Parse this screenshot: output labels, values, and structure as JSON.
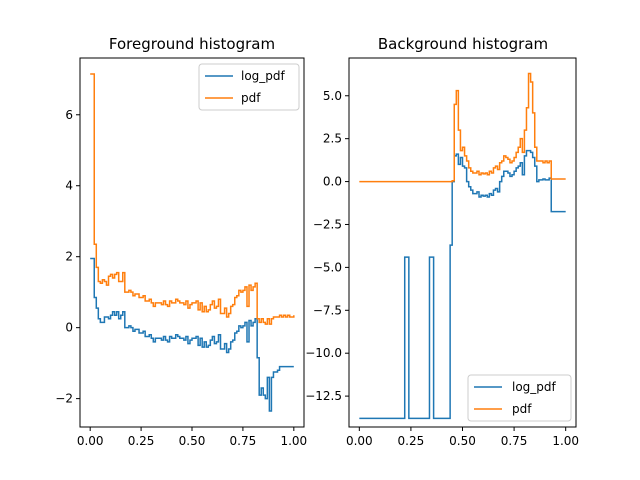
{
  "figure": {
    "background": "#ffffff"
  },
  "chart_data": [
    {
      "type": "line",
      "title": "Foreground histogram",
      "xlabel": "",
      "ylabel": "",
      "xlim": [
        -0.05,
        1.05
      ],
      "ylim": [
        -2.8,
        7.6
      ],
      "xticks": [
        0.0,
        0.25,
        0.5,
        0.75,
        1.0
      ],
      "xtick_labels": [
        "0.00",
        "0.25",
        "0.50",
        "0.75",
        "1.00"
      ],
      "yticks": [
        -2,
        0,
        2,
        4,
        6
      ],
      "ytick_labels": [
        "−2",
        "0",
        "2",
        "4",
        "6"
      ],
      "grid": false,
      "legend": "top-right",
      "series": [
        {
          "name": "log_pdf",
          "color": "#1f77b4",
          "step": true,
          "x": [
            0.0,
            0.02,
            0.03,
            0.04,
            0.05,
            0.06,
            0.07,
            0.08,
            0.09,
            0.1,
            0.11,
            0.12,
            0.13,
            0.14,
            0.15,
            0.16,
            0.17,
            0.18,
            0.19,
            0.2,
            0.21,
            0.22,
            0.23,
            0.24,
            0.25,
            0.26,
            0.27,
            0.28,
            0.29,
            0.3,
            0.31,
            0.32,
            0.33,
            0.34,
            0.35,
            0.36,
            0.37,
            0.38,
            0.39,
            0.4,
            0.41,
            0.42,
            0.43,
            0.44,
            0.45,
            0.46,
            0.47,
            0.48,
            0.49,
            0.5,
            0.51,
            0.52,
            0.53,
            0.54,
            0.55,
            0.56,
            0.57,
            0.58,
            0.59,
            0.6,
            0.61,
            0.62,
            0.63,
            0.64,
            0.65,
            0.66,
            0.67,
            0.68,
            0.69,
            0.7,
            0.71,
            0.72,
            0.73,
            0.74,
            0.75,
            0.76,
            0.77,
            0.78,
            0.79,
            0.8,
            0.81,
            0.82,
            0.83,
            0.84,
            0.85,
            0.86,
            0.87,
            0.88,
            0.89,
            0.9,
            0.91,
            0.92,
            0.93,
            0.94,
            0.95,
            0.96,
            0.97,
            0.98,
            0.99,
            1.0
          ],
          "y": [
            1.95,
            0.85,
            0.55,
            0.25,
            0.15,
            0.15,
            0.3,
            0.3,
            0.25,
            0.35,
            0.45,
            0.35,
            0.45,
            0.25,
            0.35,
            0.45,
            0.0,
            0.0,
            0.05,
            0.0,
            -0.1,
            -0.05,
            -0.05,
            -0.15,
            -0.15,
            -0.1,
            -0.25,
            -0.25,
            -0.2,
            -0.3,
            -0.4,
            -0.3,
            -0.3,
            -0.3,
            -0.35,
            -0.25,
            -0.35,
            -0.4,
            -0.25,
            -0.3,
            -0.3,
            -0.2,
            -0.25,
            -0.3,
            -0.3,
            -0.35,
            -0.25,
            -0.45,
            -0.35,
            -0.3,
            -0.3,
            -0.25,
            -0.5,
            -0.3,
            -0.55,
            -0.4,
            -0.55,
            -0.5,
            -0.35,
            -0.25,
            -0.45,
            -0.4,
            -0.2,
            -0.6,
            -0.6,
            -0.45,
            -0.7,
            -0.6,
            -0.4,
            -0.35,
            -0.15,
            -0.1,
            0.05,
            0.0,
            0.05,
            0.15,
            -0.4,
            0.2,
            0.05,
            0.15,
            0.25,
            -0.85,
            -1.9,
            -1.7,
            -1.9,
            -2.0,
            -1.4,
            -2.35,
            -1.4,
            -1.25,
            -1.25,
            -1.2,
            -1.1,
            -1.1,
            -1.1,
            -1.1,
            -1.1,
            -1.1,
            -1.1,
            -1.1
          ]
        },
        {
          "name": "pdf",
          "color": "#ff7f0e",
          "step": true,
          "x": [
            0.0,
            0.02,
            0.03,
            0.04,
            0.05,
            0.06,
            0.07,
            0.08,
            0.09,
            0.1,
            0.11,
            0.12,
            0.13,
            0.14,
            0.15,
            0.16,
            0.17,
            0.18,
            0.19,
            0.2,
            0.21,
            0.22,
            0.23,
            0.24,
            0.25,
            0.26,
            0.27,
            0.28,
            0.29,
            0.3,
            0.31,
            0.32,
            0.33,
            0.34,
            0.35,
            0.36,
            0.37,
            0.38,
            0.39,
            0.4,
            0.41,
            0.42,
            0.43,
            0.44,
            0.45,
            0.46,
            0.47,
            0.48,
            0.49,
            0.5,
            0.51,
            0.52,
            0.53,
            0.54,
            0.55,
            0.56,
            0.57,
            0.58,
            0.59,
            0.6,
            0.61,
            0.62,
            0.63,
            0.64,
            0.65,
            0.66,
            0.67,
            0.68,
            0.69,
            0.7,
            0.71,
            0.72,
            0.73,
            0.74,
            0.75,
            0.76,
            0.77,
            0.78,
            0.79,
            0.8,
            0.81,
            0.82,
            0.83,
            0.84,
            0.85,
            0.86,
            0.87,
            0.88,
            0.89,
            0.9,
            0.91,
            0.92,
            0.93,
            0.94,
            0.95,
            0.96,
            0.97,
            0.98,
            0.99,
            1.0
          ],
          "y": [
            7.15,
            2.35,
            1.7,
            1.3,
            1.25,
            1.35,
            1.3,
            1.2,
            1.45,
            1.5,
            1.4,
            1.5,
            1.55,
            1.3,
            1.3,
            1.55,
            1.0,
            1.0,
            1.05,
            1.0,
            0.9,
            0.95,
            0.95,
            0.85,
            0.85,
            0.9,
            0.75,
            0.75,
            0.8,
            0.7,
            0.6,
            0.7,
            0.7,
            0.7,
            0.65,
            0.75,
            0.65,
            0.6,
            0.75,
            0.7,
            0.7,
            0.8,
            0.75,
            0.7,
            0.7,
            0.65,
            0.75,
            0.55,
            0.65,
            0.7,
            0.7,
            0.75,
            0.5,
            0.7,
            0.45,
            0.6,
            0.45,
            0.5,
            0.65,
            0.75,
            0.55,
            0.6,
            0.8,
            0.4,
            0.4,
            0.55,
            0.3,
            0.4,
            0.6,
            0.65,
            0.85,
            0.9,
            1.05,
            1.0,
            1.05,
            1.15,
            0.6,
            1.2,
            1.05,
            1.15,
            1.25,
            0.25,
            0.15,
            0.25,
            0.15,
            0.1,
            0.25,
            0.1,
            0.25,
            0.3,
            0.3,
            0.3,
            0.35,
            0.3,
            0.35,
            0.3,
            0.35,
            0.3,
            0.3,
            0.35
          ]
        }
      ]
    },
    {
      "type": "line",
      "title": "Background histogram",
      "xlabel": "",
      "ylabel": "",
      "xlim": [
        -0.05,
        1.05
      ],
      "ylim": [
        -14.3,
        7.2
      ],
      "xticks": [
        0.0,
        0.25,
        0.5,
        0.75,
        1.0
      ],
      "xtick_labels": [
        "0.00",
        "0.25",
        "0.50",
        "0.75",
        "1.00"
      ],
      "yticks": [
        -12.5,
        -10.0,
        -7.5,
        -5.0,
        -2.5,
        0.0,
        2.5,
        5.0
      ],
      "ytick_labels": [
        "−12.5",
        "−10.0",
        "−7.5",
        "−5.0",
        "−2.5",
        "0.0",
        "2.5",
        "5.0"
      ],
      "grid": false,
      "legend": "bottom-right",
      "series": [
        {
          "name": "log_pdf",
          "color": "#1f77b4",
          "step": true,
          "x": [
            0.0,
            0.22,
            0.23,
            0.24,
            0.34,
            0.35,
            0.36,
            0.44,
            0.45,
            0.46,
            0.47,
            0.48,
            0.49,
            0.5,
            0.51,
            0.52,
            0.53,
            0.54,
            0.55,
            0.56,
            0.57,
            0.58,
            0.59,
            0.6,
            0.61,
            0.62,
            0.63,
            0.64,
            0.65,
            0.66,
            0.67,
            0.68,
            0.69,
            0.7,
            0.71,
            0.72,
            0.73,
            0.74,
            0.75,
            0.76,
            0.77,
            0.78,
            0.79,
            0.8,
            0.81,
            0.82,
            0.83,
            0.84,
            0.85,
            0.86,
            0.87,
            0.88,
            0.89,
            0.9,
            0.91,
            0.92,
            0.93,
            0.94,
            0.95,
            0.96,
            0.97,
            0.98,
            0.99,
            1.0
          ],
          "y": [
            -13.8,
            -4.4,
            -4.4,
            -13.8,
            -4.4,
            -4.4,
            -13.8,
            -3.7,
            0.0,
            1.5,
            1.6,
            1.0,
            1.4,
            0.9,
            0.8,
            0.0,
            -0.3,
            -0.5,
            -0.7,
            -0.7,
            -0.6,
            -0.9,
            -0.8,
            -0.85,
            -0.8,
            -0.9,
            -0.7,
            -0.8,
            -0.5,
            -0.4,
            -0.6,
            0.0,
            0.3,
            0.6,
            0.6,
            0.5,
            0.3,
            0.4,
            0.6,
            0.8,
            0.9,
            1.1,
            0.4,
            1.5,
            1.8,
            1.8,
            1.7,
            1.4,
            0.9,
            0.0,
            0.1,
            0.1,
            0.15,
            0.1,
            0.1,
            0.2,
            -1.75,
            -1.75,
            -1.75,
            -1.75,
            -1.75,
            -1.75,
            -1.75,
            -1.75
          ]
        },
        {
          "name": "pdf",
          "color": "#ff7f0e",
          "step": true,
          "x": [
            0.0,
            0.22,
            0.23,
            0.24,
            0.34,
            0.35,
            0.36,
            0.44,
            0.45,
            0.46,
            0.47,
            0.48,
            0.49,
            0.5,
            0.51,
            0.52,
            0.53,
            0.54,
            0.55,
            0.56,
            0.57,
            0.58,
            0.59,
            0.6,
            0.61,
            0.62,
            0.63,
            0.64,
            0.65,
            0.66,
            0.67,
            0.68,
            0.69,
            0.7,
            0.71,
            0.72,
            0.73,
            0.74,
            0.75,
            0.76,
            0.77,
            0.78,
            0.79,
            0.8,
            0.81,
            0.82,
            0.83,
            0.84,
            0.85,
            0.86,
            0.87,
            0.88,
            0.89,
            0.9,
            0.91,
            0.92,
            0.93,
            0.94,
            0.95,
            0.96,
            0.97,
            0.98,
            0.99,
            1.0
          ],
          "y": [
            0.0,
            0.0,
            0.0,
            0.0,
            0.0,
            0.0,
            0.0,
            0.0,
            0.05,
            4.5,
            5.3,
            3.0,
            1.8,
            2.0,
            1.5,
            1.2,
            0.8,
            0.6,
            0.5,
            0.5,
            0.6,
            0.4,
            0.5,
            0.45,
            0.5,
            0.4,
            0.6,
            0.5,
            0.8,
            0.9,
            0.7,
            1.1,
            1.2,
            1.5,
            1.4,
            1.3,
            1.1,
            1.2,
            1.4,
            1.7,
            2.0,
            2.5,
            1.7,
            3.0,
            4.3,
            6.3,
            5.8,
            4.0,
            2.0,
            1.2,
            1.2,
            1.2,
            1.1,
            1.2,
            1.1,
            1.2,
            0.15,
            0.15,
            0.15,
            0.15,
            0.15,
            0.15,
            0.15,
            0.15
          ]
        }
      ]
    }
  ]
}
